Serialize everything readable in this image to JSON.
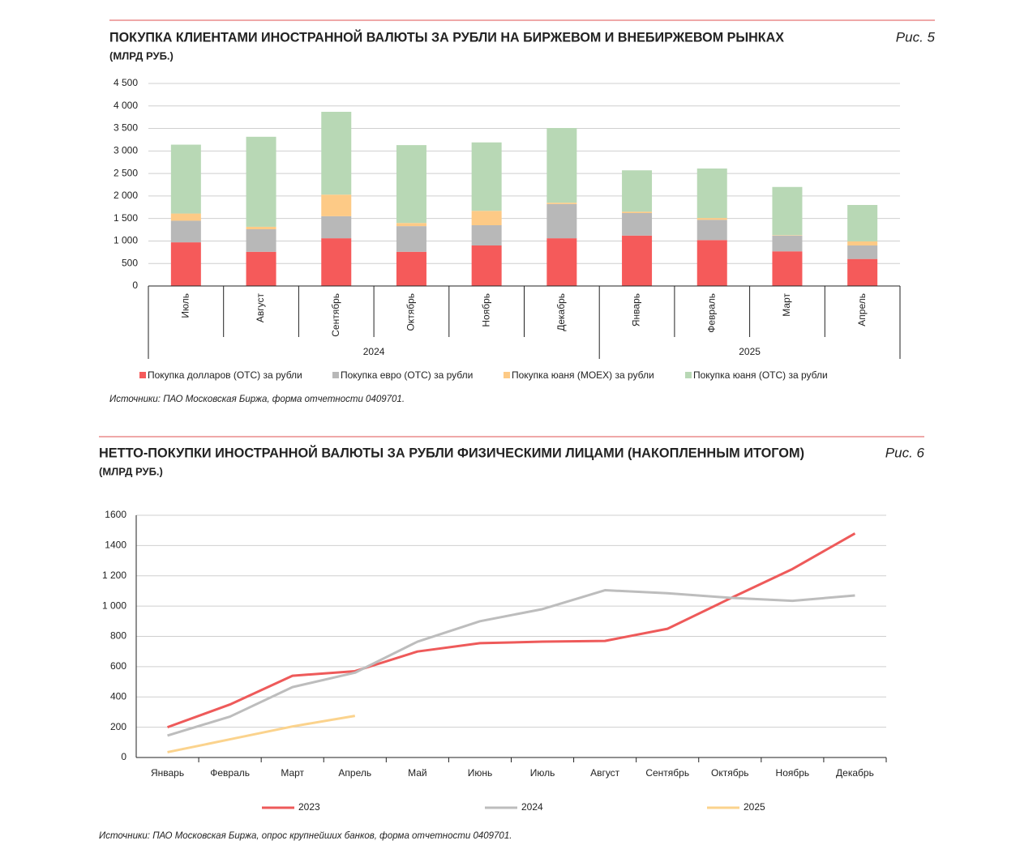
{
  "chart_data": [
    {
      "type": "stacked_bar",
      "title": "ПОКУПКА КЛИЕНТАМИ ИНОСТРАННОЙ ВАЛЮТЫ ЗА РУБЛИ НА БИРЖЕВОМ И ВНЕБИРЖЕВОМ РЫНКАХ",
      "subtitle": "(МЛРД РУБ.)",
      "figure_label": "Рис. 5",
      "source": "Источники: ПАО Московская Биржа, форма отчетности 0409701.",
      "category_groups": [
        {
          "label": "2024",
          "categories": [
            "Июль",
            "Август",
            "Сентябрь",
            "Октябрь",
            "Ноябрь",
            "Декабрь"
          ]
        },
        {
          "label": "2025",
          "categories": [
            "Январь",
            "Февраль",
            "Март",
            "Апрель"
          ]
        }
      ],
      "series": [
        {
          "name": "Покупка долларов (ОТС) за рубли",
          "color": "#f55a5a",
          "values": [
            970,
            760,
            1060,
            760,
            900,
            1060,
            1120,
            1020,
            770,
            600
          ]
        },
        {
          "name": "Покупка евро (ОТС) за рубли",
          "color": "#b8b8b8",
          "values": [
            480,
            500,
            490,
            570,
            450,
            760,
            500,
            450,
            350,
            300
          ]
        },
        {
          "name": "Покупка юаня (МОЕХ) за рубли",
          "color": "#fdca86",
          "values": [
            160,
            55,
            480,
            70,
            320,
            30,
            30,
            40,
            10,
            90
          ]
        },
        {
          "name": "Покупка юаня (ОТС) за рубли",
          "color": "#b8d8b5",
          "values": [
            1530,
            2000,
            1840,
            1730,
            1520,
            1660,
            920,
            1100,
            1070,
            810
          ]
        }
      ],
      "ylim": [
        0,
        4500
      ],
      "yticks": [
        0,
        500,
        {
          "value": 1000,
          "label": "1 000"
        },
        {
          "value": 1500,
          "label": "1 500"
        },
        {
          "value": 2000,
          "label": "2 000"
        },
        {
          "value": 2500,
          "label": "2 500"
        },
        {
          "value": 3000,
          "label": "3 000"
        },
        {
          "value": 3500,
          "label": "3 500"
        },
        {
          "value": 4000,
          "label": "4 000"
        },
        {
          "value": 4500,
          "label": "4 500"
        }
      ],
      "grid": true
    },
    {
      "type": "line",
      "title": "НЕТТО-ПОКУПКИ ИНОСТРАННОЙ ВАЛЮТЫ ЗА РУБЛИ ФИЗИЧЕСКИМИ ЛИЦАМИ (НАКОПЛЕННЫМ ИТОГОМ)",
      "subtitle": "(МЛРД РУБ.)",
      "figure_label": "Рис. 6",
      "source": "Источники: ПАО Московская Биржа, опрос крупнейших банков, форма отчетности 0409701.",
      "categories": [
        "Январь",
        "Февраль",
        "Март",
        "Апрель",
        "Май",
        "Июнь",
        "Июль",
        "Август",
        "Сентябрь",
        "Октябрь",
        "Ноябрь",
        "Декабрь"
      ],
      "series": [
        {
          "name": "2023",
          "color": "#ee5a5a",
          "values": [
            200,
            350,
            540,
            570,
            700,
            755,
            765,
            770,
            850,
            1050,
            1245,
            1480
          ]
        },
        {
          "name": "2024",
          "color": "#bdbdbd",
          "values": [
            145,
            270,
            465,
            560,
            765,
            900,
            980,
            1105,
            1085,
            1055,
            1035,
            1070
          ]
        },
        {
          "name": "2025",
          "color": "#fbd38d",
          "values": [
            35,
            120,
            205,
            275,
            null,
            null,
            null,
            null,
            null,
            null,
            null,
            null
          ]
        }
      ],
      "ylim": [
        0,
        1600
      ],
      "yticks": [
        0,
        200,
        400,
        600,
        800,
        {
          "value": 1000,
          "label": "1 000"
        },
        {
          "value": 1200,
          "label": "1 200"
        },
        1400,
        1600
      ],
      "grid": true
    }
  ]
}
